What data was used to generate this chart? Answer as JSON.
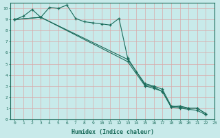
{
  "xlabel": "Humidex (Indice chaleur)",
  "background_color": "#c8eaea",
  "grid_color": "#d8b8b8",
  "line_color": "#1a6b5a",
  "xlim": [
    -0.5,
    23
  ],
  "ylim": [
    0,
    10.5
  ],
  "xticks": [
    0,
    1,
    2,
    3,
    4,
    5,
    6,
    7,
    8,
    9,
    10,
    11,
    12,
    13,
    14,
    15,
    16,
    17,
    18,
    19,
    20,
    21,
    22,
    23
  ],
  "yticks": [
    0,
    1,
    2,
    3,
    4,
    5,
    6,
    7,
    8,
    9,
    10
  ],
  "series": [
    {
      "x": [
        0,
        1,
        2,
        3,
        4,
        5,
        6,
        7,
        8,
        9,
        10,
        11,
        12,
        13,
        14,
        15,
        16,
        17,
        18,
        19,
        20,
        21,
        22
      ],
      "y": [
        9,
        9.3,
        9.9,
        9.2,
        10.1,
        10.0,
        10.3,
        9.1,
        8.8,
        8.7,
        8.6,
        8.5,
        9.1,
        5.5,
        4.3,
        3.1,
        2.9,
        2.5,
        1.1,
        1.2,
        1.0,
        1.0,
        0.5
      ]
    },
    {
      "x": [
        0,
        3,
        13,
        15,
        16,
        17,
        18,
        19,
        20,
        21,
        22
      ],
      "y": [
        9,
        9.2,
        5.4,
        3.2,
        3.0,
        2.7,
        1.2,
        1.1,
        1.0,
        1.0,
        0.5
      ]
    },
    {
      "x": [
        0,
        3,
        13,
        15,
        16,
        17,
        18,
        19,
        20,
        21,
        22
      ],
      "y": [
        9,
        9.2,
        5.2,
        3.0,
        2.8,
        2.5,
        1.1,
        1.0,
        0.9,
        0.8,
        0.4
      ]
    }
  ]
}
